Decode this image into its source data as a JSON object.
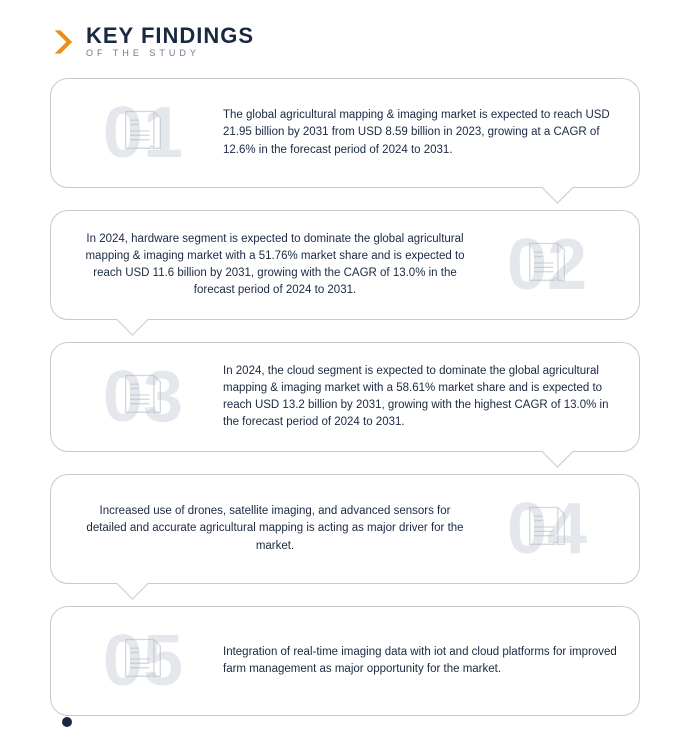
{
  "header": {
    "title": "KEY FINDINGS",
    "subtitle": "OF THE STUDY",
    "chevron_color": "#e8901a",
    "title_color": "#1a2942",
    "subtitle_color": "#6b7a8f"
  },
  "style": {
    "bubble_border": "#c5c9d0",
    "bubble_radius": 18,
    "number_color": "#e4e7ec",
    "number_fontsize": 72,
    "text_color": "#1a2942",
    "text_fontsize": 11.5,
    "icon_stroke": "#b8bec8",
    "dot_color": "#1a2942",
    "background": "#ffffff"
  },
  "findings": [
    {
      "num": "01",
      "side": "left",
      "tail": "br",
      "text": "The global agricultural mapping & imaging market is expected to reach USD 21.95 billion by 2031 from USD 8.59 billion in 2023, growing at a CAGR of 12.6% in the forecast period of 2024 to 2031."
    },
    {
      "num": "02",
      "side": "right",
      "tail": "bl",
      "text": "In 2024, hardware segment is expected to dominate the global agricultural mapping & imaging market with a 51.76% market share and is expected to reach USD 11.6 billion by 2031, growing with the CAGR of 13.0% in the forecast period of 2024 to 2031."
    },
    {
      "num": "03",
      "side": "left",
      "tail": "br",
      "text": "In 2024, the cloud segment is expected to dominate the global agricultural mapping & imaging market with a 58.61% market share and is expected to reach USD 13.2 billion by 2031, growing with the highest CAGR of 13.0% in the forecast period of 2024 to 2031."
    },
    {
      "num": "04",
      "side": "right",
      "tail": "bl",
      "text": "Increased use of drones, satellite imaging, and advanced sensors for detailed and accurate agricultural mapping is acting as major driver for the market."
    },
    {
      "num": "05",
      "side": "left",
      "tail": "none",
      "text": "Integration of real-time imaging data with iot and cloud platforms for improved farm management as major opportunity for the market."
    }
  ]
}
